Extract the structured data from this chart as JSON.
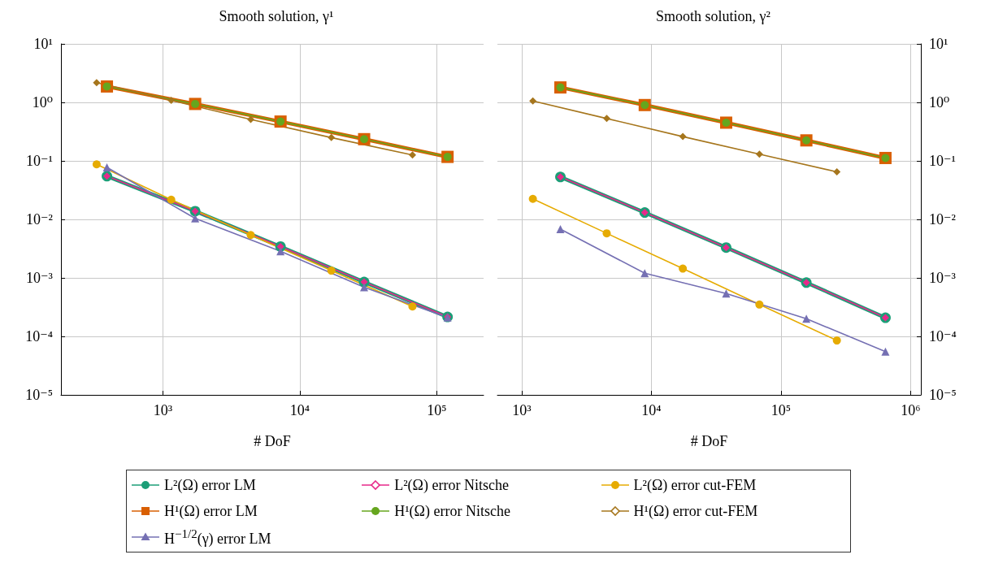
{
  "chart_data": [
    {
      "type": "line",
      "title": "Smooth solution, γ¹",
      "xlabel": "# DoF",
      "log": "xy",
      "grid": true,
      "legend": "bottom",
      "xlim": [
        180,
        220000
      ],
      "ylim": [
        1e-05,
        10
      ],
      "xticks": [
        {
          "value": 1000,
          "label": "10³"
        },
        {
          "value": 10000,
          "label": "10⁴"
        },
        {
          "value": 100000,
          "label": "10⁵"
        }
      ],
      "yticks": [
        {
          "value": 1e-05,
          "label": "10⁻⁵"
        },
        {
          "value": 0.0001,
          "label": "10⁻⁴"
        },
        {
          "value": 0.001,
          "label": "10⁻³"
        },
        {
          "value": 0.01,
          "label": "10⁻²"
        },
        {
          "value": 0.1,
          "label": "10⁻¹"
        },
        {
          "value": 1,
          "label": "10⁰"
        },
        {
          "value": 10,
          "label": "10¹"
        }
      ],
      "series": [
        {
          "name": "L²(Ω) error LM",
          "color": "#1b9e77",
          "marker": "circle",
          "x": [
            390,
            1720,
            7230,
            29500,
            120000
          ],
          "values": [
            0.0547,
            0.0138,
            0.00343,
            0.00085,
            0.000215
          ]
        },
        {
          "name": "L²(Ω) error Nitsche",
          "color": "#e7298a",
          "marker": "diamond",
          "x": [
            390,
            1720,
            7230,
            29500,
            120000
          ],
          "values": [
            0.0547,
            0.0138,
            0.00343,
            0.00085,
            0.000215
          ]
        },
        {
          "name": "L²(Ω) error cut-FEM",
          "color": "#e6ab02",
          "marker": "circle",
          "x": [
            328,
            1150,
            4380,
            17000,
            66500
          ],
          "values": [
            0.0873,
            0.0217,
            0.0054,
            0.00133,
            0.000324
          ]
        },
        {
          "name": "H¹(Ω) error LM",
          "color": "#d95f02",
          "marker": "square",
          "x": [
            390,
            1720,
            7230,
            29500,
            120000
          ],
          "values": [
            1.87,
            0.94,
            0.47,
            0.235,
            0.117
          ]
        },
        {
          "name": "H¹(Ω) error Nitsche",
          "color": "#66a61e",
          "marker": "circle",
          "x": [
            390,
            1720,
            7230,
            29500,
            120000
          ],
          "values": [
            1.87,
            0.94,
            0.47,
            0.235,
            0.117
          ]
        },
        {
          "name": "H¹(Ω) error cut-FEM",
          "color": "#a6761d",
          "marker": "diamond",
          "x": [
            328,
            1150,
            4380,
            17000,
            66500
          ],
          "values": [
            2.17,
            1.08,
            0.51,
            0.25,
            0.126
          ]
        },
        {
          "name": "H$^{−1/2}$(γ) error LM",
          "color": "#7570b3",
          "marker": "triangle",
          "x": [
            390,
            1720,
            7230,
            29500,
            120000
          ],
          "values": [
            0.0773,
            0.0104,
            0.00285,
            0.00069,
            0.00021
          ]
        }
      ]
    },
    {
      "type": "line",
      "title": "Smooth solution, γ²",
      "xlabel": "# DoF",
      "log": "xy",
      "grid": true,
      "xlim": [
        650,
        1200000
      ],
      "ylim": [
        1e-05,
        10
      ],
      "xticks": [
        {
          "value": 1000,
          "label": "10³"
        },
        {
          "value": 10000,
          "label": "10⁴"
        },
        {
          "value": 100000,
          "label": "10⁵"
        },
        {
          "value": 1000000,
          "label": "10⁶"
        }
      ],
      "yticks": [
        {
          "value": 1e-05,
          "label": "10⁻⁵"
        },
        {
          "value": 0.0001,
          "label": "10⁻⁴"
        },
        {
          "value": 0.001,
          "label": "10⁻³"
        },
        {
          "value": 0.01,
          "label": "10⁻²"
        },
        {
          "value": 0.1,
          "label": "10⁻¹"
        },
        {
          "value": 1,
          "label": "10⁰"
        },
        {
          "value": 10,
          "label": "10¹"
        }
      ],
      "series": [
        {
          "color": "#1b9e77",
          "marker": "circle",
          "x": [
            1990,
            8900,
            37800,
            157000,
            640000
          ],
          "values": [
            0.053,
            0.0131,
            0.0033,
            0.00083,
            0.000208
          ]
        },
        {
          "color": "#e7298a",
          "marker": "diamond",
          "x": [
            1990,
            8900,
            37800,
            157000,
            640000
          ],
          "values": [
            0.053,
            0.0131,
            0.0033,
            0.00083,
            0.000208
          ]
        },
        {
          "color": "#e6ab02",
          "marker": "circle",
          "x": [
            1220,
            4530,
            17500,
            68200,
            270000
          ],
          "values": [
            0.0224,
            0.00578,
            0.00144,
            0.00035,
            8.5e-05
          ]
        },
        {
          "color": "#d95f02",
          "marker": "square",
          "x": [
            1990,
            8900,
            37800,
            157000,
            640000
          ],
          "values": [
            1.8,
            0.9,
            0.45,
            0.224,
            0.112
          ]
        },
        {
          "color": "#66a61e",
          "marker": "circle",
          "x": [
            1990,
            8900,
            37800,
            157000,
            640000
          ],
          "values": [
            1.8,
            0.9,
            0.45,
            0.224,
            0.112
          ]
        },
        {
          "color": "#a6761d",
          "marker": "diamond",
          "x": [
            1220,
            4530,
            17500,
            68200,
            270000
          ],
          "values": [
            1.06,
            0.53,
            0.26,
            0.13,
            0.065
          ]
        },
        {
          "color": "#7570b3",
          "marker": "triangle",
          "x": [
            1990,
            8900,
            37800,
            157000,
            640000
          ],
          "values": [
            0.0068,
            0.0012,
            0.00054,
            0.0002,
            5.5e-05
          ]
        }
      ]
    }
  ]
}
